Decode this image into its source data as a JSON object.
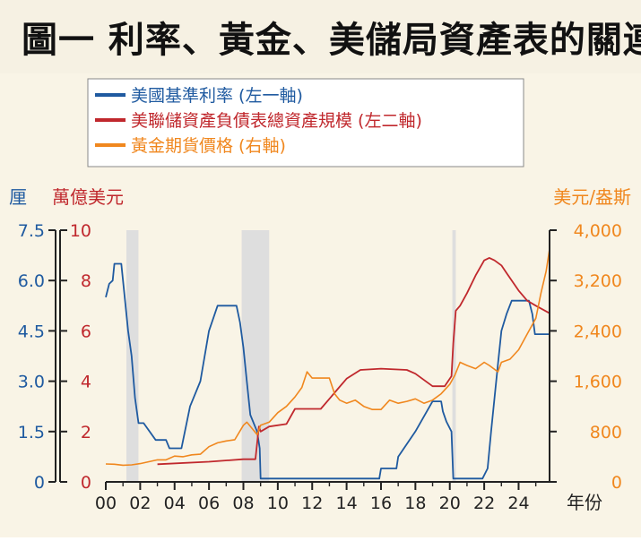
{
  "title": "圖一  利率、黃金、美儲局資產表的關連",
  "colors": {
    "rate": "#1f5aa0",
    "balance": "#c0282d",
    "gold": "#f0871e",
    "axis": "#222222",
    "recession": "#dedede",
    "background": "#f9f4e6"
  },
  "chart_data": {
    "type": "line",
    "legend": [
      {
        "label": "美國基準利率 (左一軸)",
        "color": "#1f5aa0"
      },
      {
        "label": "美聯儲資產負債表總資產規模 (左二軸)",
        "color": "#c0282d"
      },
      {
        "label": "黃金期貨價格 (右軸)",
        "color": "#f0871e"
      }
    ],
    "legend_position": "top-left",
    "axes": {
      "left1": {
        "unit": "厘",
        "ticks": [
          "0",
          "1.5",
          "3.0",
          "4.5",
          "6.0",
          "7.5"
        ],
        "range": [
          0,
          7.5
        ]
      },
      "left2": {
        "unit": "萬億美元",
        "ticks": [
          "0",
          "2",
          "4",
          "6",
          "8",
          "10"
        ],
        "range": [
          0,
          10
        ]
      },
      "right": {
        "unit": "美元/盎斯",
        "ticks": [
          "0",
          "800",
          "1,600",
          "2,400",
          "3,200",
          "4,000"
        ],
        "range": [
          0,
          4000
        ]
      },
      "x": {
        "unit": "年份",
        "ticks": [
          "00",
          "02",
          "04",
          "06",
          "08",
          "10",
          "12",
          "14",
          "16",
          "18",
          "20",
          "22",
          "24"
        ],
        "range": [
          2000,
          2025.8
        ]
      }
    },
    "grid": false,
    "recession_shading": [
      [
        2001.2,
        2001.9
      ],
      [
        2007.9,
        2009.5
      ],
      [
        2020.15,
        2020.35
      ]
    ],
    "series": [
      {
        "name": "美國基準利率",
        "axis": "left1",
        "x": [
          2000.0,
          2000.2,
          2000.4,
          2000.5,
          2000.6,
          2000.9,
          2001.0,
          2001.1,
          2001.3,
          2001.5,
          2001.7,
          2001.9,
          2002.2,
          2002.9,
          2003.5,
          2003.7,
          2004.4,
          2004.5,
          2004.9,
          2005.5,
          2006.0,
          2006.5,
          2007.6,
          2007.8,
          2008.0,
          2008.2,
          2008.4,
          2008.8,
          2008.95,
          2009.0,
          2015.9,
          2016.0,
          2016.9,
          2017.0,
          2018.0,
          2019.0,
          2019.5,
          2019.6,
          2019.8,
          2020.1,
          2020.2,
          2021.9,
          2022.2,
          2022.4,
          2022.6,
          2022.8,
          2023.0,
          2023.3,
          2023.6,
          2024.6,
          2024.8,
          2024.95,
          2025.8
        ],
        "y": [
          5.5,
          5.9,
          6.0,
          6.5,
          6.5,
          6.5,
          6.0,
          5.5,
          4.5,
          3.75,
          2.5,
          1.75,
          1.75,
          1.25,
          1.25,
          1.0,
          1.0,
          1.25,
          2.25,
          3.0,
          4.5,
          5.25,
          5.25,
          4.75,
          4.0,
          3.0,
          2.0,
          1.5,
          1.0,
          0.1,
          0.1,
          0.4,
          0.4,
          0.75,
          1.5,
          2.4,
          2.4,
          2.1,
          1.8,
          1.5,
          0.1,
          0.1,
          0.4,
          1.5,
          2.5,
          3.5,
          4.5,
          5.0,
          5.4,
          5.4,
          5.0,
          4.4,
          4.4
        ]
      },
      {
        "name": "美聯儲資產負債表總資產規模",
        "axis": "left2",
        "x": [
          2003.0,
          2006.0,
          2008.0,
          2008.7,
          2008.9,
          2009.0,
          2009.5,
          2010.5,
          2011.0,
          2011.5,
          2012.5,
          2013.0,
          2013.5,
          2014.0,
          2014.8,
          2016.0,
          2017.5,
          2018.0,
          2019.0,
          2019.7,
          2020.1,
          2020.2,
          2020.35,
          2020.6,
          2021.0,
          2021.5,
          2022.0,
          2022.3,
          2022.6,
          2023.0,
          2023.3,
          2024.0,
          2024.5,
          2025.0,
          2025.8
        ],
        "y": [
          0.7,
          0.8,
          0.9,
          0.9,
          2.2,
          2.0,
          2.2,
          2.3,
          2.9,
          2.9,
          2.9,
          3.3,
          3.7,
          4.1,
          4.45,
          4.5,
          4.45,
          4.3,
          3.8,
          3.8,
          4.2,
          5.5,
          6.8,
          7.0,
          7.5,
          8.2,
          8.8,
          8.9,
          8.8,
          8.6,
          8.3,
          7.6,
          7.2,
          7.0,
          6.7
        ]
      },
      {
        "name": "黃金期貨價格",
        "axis": "right",
        "x": [
          2000.0,
          2000.5,
          2001.0,
          2001.5,
          2002.0,
          2002.5,
          2003.0,
          2003.5,
          2004.0,
          2004.5,
          2005.0,
          2005.5,
          2006.0,
          2006.5,
          2007.0,
          2007.5,
          2008.0,
          2008.2,
          2008.5,
          2008.8,
          2009.0,
          2009.5,
          2010.0,
          2010.5,
          2011.0,
          2011.4,
          2011.7,
          2012.0,
          2012.5,
          2013.0,
          2013.3,
          2013.6,
          2014.0,
          2014.5,
          2015.0,
          2015.5,
          2016.0,
          2016.5,
          2017.0,
          2017.5,
          2018.0,
          2018.5,
          2019.0,
          2019.5,
          2020.0,
          2020.3,
          2020.6,
          2021.0,
          2021.5,
          2022.0,
          2022.3,
          2022.8,
          2023.0,
          2023.5,
          2024.0,
          2024.5,
          2025.0,
          2025.3,
          2025.6,
          2025.8
        ],
        "y": [
          285,
          280,
          265,
          270,
          290,
          320,
          350,
          350,
          410,
          400,
          430,
          440,
          560,
          620,
          650,
          670,
          900,
          950,
          850,
          750,
          900,
          950,
          1100,
          1200,
          1350,
          1500,
          1750,
          1650,
          1650,
          1650,
          1400,
          1300,
          1250,
          1300,
          1200,
          1150,
          1150,
          1300,
          1250,
          1280,
          1320,
          1250,
          1300,
          1400,
          1550,
          1700,
          1900,
          1850,
          1800,
          1900,
          1850,
          1750,
          1900,
          1950,
          2100,
          2350,
          2600,
          3000,
          3350,
          3700
        ]
      }
    ]
  }
}
